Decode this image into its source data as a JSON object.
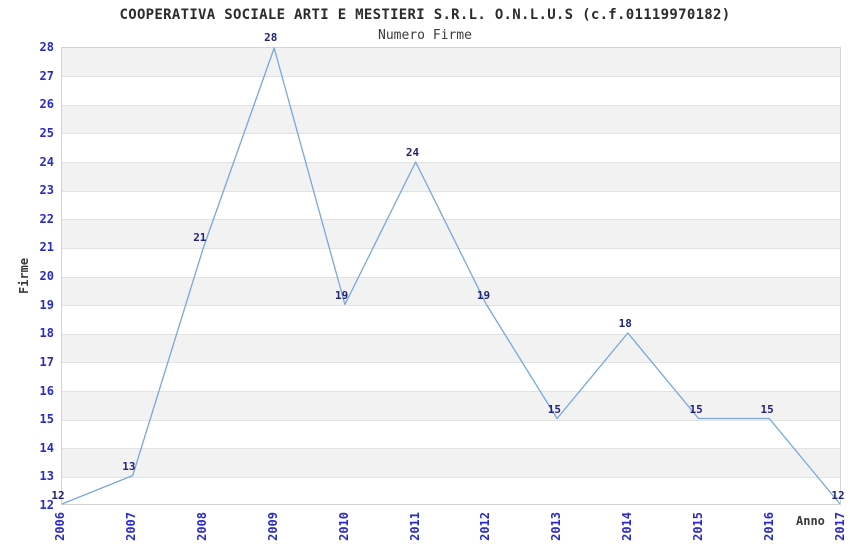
{
  "chart_data": {
    "type": "line",
    "title": "COOPERATIVA SOCIALE ARTI E MESTIERI S.R.L. O.N.L.U.S (c.f.01119970182)",
    "subtitle": "Numero Firme",
    "xlabel": "Anno",
    "ylabel": "Firme",
    "categories": [
      "2006",
      "2007",
      "2008",
      "2009",
      "2010",
      "2011",
      "2012",
      "2013",
      "2014",
      "2015",
      "2016",
      "2017"
    ],
    "series": [
      {
        "name": "Numero Firme",
        "values": [
          12,
          13,
          21,
          28,
          19,
          24,
          19,
          15,
          18,
          15,
          15,
          12
        ]
      }
    ],
    "ylim": [
      12,
      28
    ],
    "ytick_step": 1,
    "grid": "horizontal gridline every unit with alternating gray/white bands",
    "legend": "none",
    "point_labels_visible": true,
    "colors": {
      "line": "#79a7da",
      "tick_label": "#2a2ac8",
      "point_label": "#232377",
      "band": "#f2f2f2",
      "gridline": "#e2e2e2",
      "plot_border": "#d4d4d4",
      "title": "#2b2b2b",
      "subtitle": "#3c3c3c",
      "axis_label": "#3a3a3a",
      "background": "#ffffff"
    }
  }
}
